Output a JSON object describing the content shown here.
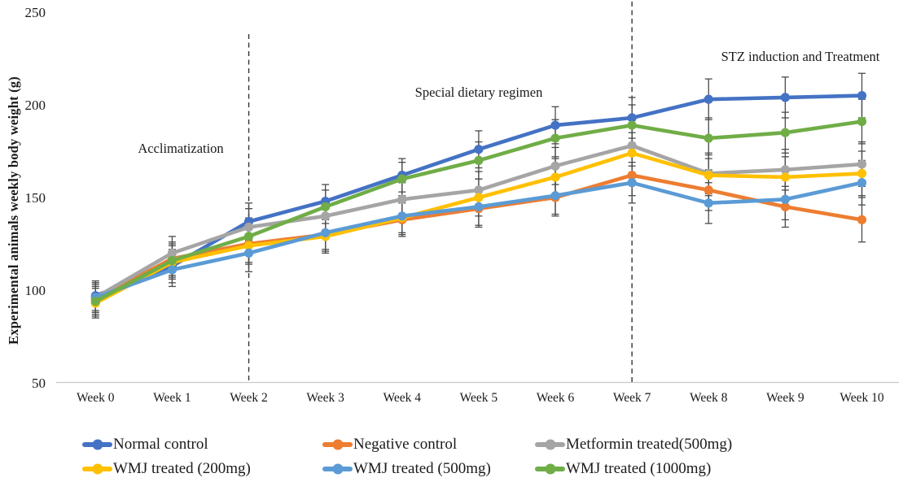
{
  "chart_data": {
    "type": "line",
    "title": "",
    "xlabel": "",
    "ylabel": "Experimental animals weekly body weight (g)",
    "ylim": [
      50,
      250
    ],
    "yticks": [
      50,
      100,
      150,
      200,
      250
    ],
    "grid": false,
    "legend_position": "bottom",
    "categories": [
      "Week 0",
      "Week 1",
      "Week 2",
      "Week 3",
      "Week 4",
      "Week 5",
      "Week 6",
      "Week 7",
      "Week 8",
      "Week 9",
      "Week 10"
    ],
    "series": [
      {
        "name": "Normal control",
        "color": "#4472C4",
        "values": [
          97,
          113,
          137,
          148,
          162,
          176,
          189,
          193,
          203,
          204,
          205
        ]
      },
      {
        "name": "Negative control",
        "color": "#ED7D31",
        "values": [
          95,
          117,
          125,
          130,
          138,
          144,
          150,
          162,
          154,
          145,
          138
        ]
      },
      {
        "name": "Metformin treated(500mg)",
        "color": "#A5A5A5",
        "values": [
          96,
          120,
          134,
          140,
          149,
          154,
          167,
          178,
          163,
          165,
          168
        ]
      },
      {
        "name": "WMJ treated (200mg)",
        "color": "#FFC000",
        "values": [
          93,
          115,
          124,
          129,
          139,
          150,
          161,
          174,
          162,
          161,
          163
        ]
      },
      {
        "name": "WMJ treated (500mg)",
        "color": "#5B9BD5",
        "values": [
          96,
          111,
          120,
          131,
          140,
          145,
          151,
          158,
          147,
          149,
          158
        ]
      },
      {
        "name": "WMJ treated (1000mg)",
        "color": "#70AD47",
        "values": [
          94,
          116,
          129,
          145,
          160,
          170,
          182,
          189,
          182,
          185,
          191
        ]
      }
    ],
    "error_bars_g": [
      8,
      9,
      10,
      9,
      9,
      10,
      10,
      11,
      11,
      11,
      12
    ],
    "phase_dividers": [
      {
        "at_category": "Week 2",
        "week_index": 2
      },
      {
        "at_category": "Week 7",
        "week_index": 7
      }
    ],
    "annotations": [
      {
        "text": "Acclimatization"
      },
      {
        "text": "Special dietary regimen"
      },
      {
        "text": "STZ induction and Treatment"
      }
    ],
    "colors": {
      "axis_line": "#C9C9C9",
      "error_bar": "#4a4a4a",
      "divider": "#333333",
      "text": "#1a1a1a"
    }
  }
}
